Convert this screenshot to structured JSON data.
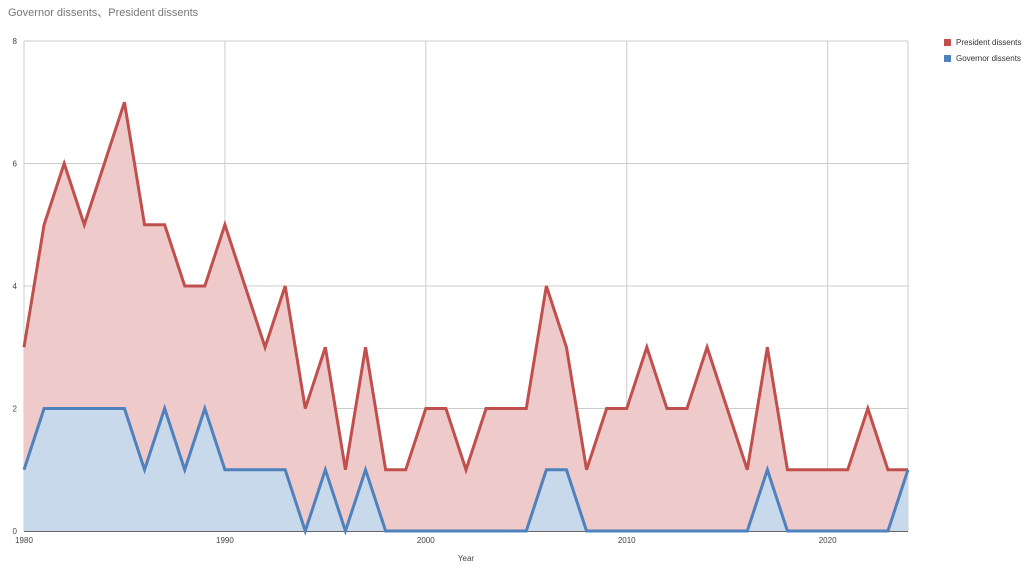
{
  "chart_data": {
    "type": "area",
    "title": "Governor dissents、President dissents",
    "xlabel": "Year",
    "ylabel": "",
    "xlim": [
      1980,
      2024
    ],
    "ylim": [
      0,
      8
    ],
    "x_ticks": [
      "1980",
      "1990",
      "2000",
      "2010",
      "2020"
    ],
    "y_ticks": [
      "0",
      "2",
      "4",
      "6",
      "8"
    ],
    "grid": true,
    "legend_position": "top-right",
    "x": [
      1980,
      1981,
      1982,
      1983,
      1984,
      1985,
      1986,
      1987,
      1988,
      1989,
      1990,
      1991,
      1992,
      1993,
      1994,
      1995,
      1996,
      1997,
      1998,
      1999,
      2000,
      2001,
      2002,
      2003,
      2004,
      2005,
      2006,
      2007,
      2008,
      2009,
      2010,
      2011,
      2012,
      2013,
      2014,
      2015,
      2016,
      2017,
      2018,
      2019,
      2020,
      2021,
      2022,
      2023,
      2024
    ],
    "series": [
      {
        "name": "President dissents",
        "color": "#c0504d",
        "fill": "#efcaca",
        "values": [
          3,
          5,
          6,
          5,
          6,
          7,
          5,
          5,
          4,
          4,
          5,
          4,
          3,
          4,
          2,
          3,
          1,
          3,
          1,
          1,
          2,
          2,
          1,
          2,
          2,
          2,
          4,
          3,
          1,
          2,
          2,
          3,
          2,
          2,
          3,
          2,
          1,
          3,
          1,
          1,
          1,
          1,
          2,
          1,
          1
        ]
      },
      {
        "name": "Governor dissents",
        "color": "#4f81bd",
        "fill": "#c9d9ec",
        "values": [
          1,
          2,
          2,
          2,
          2,
          2,
          1,
          2,
          1,
          2,
          1,
          1,
          1,
          1,
          0,
          1,
          0,
          1,
          0,
          0,
          0,
          0,
          0,
          0,
          0,
          0,
          1,
          1,
          0,
          0,
          0,
          0,
          0,
          0,
          0,
          0,
          0,
          1,
          0,
          0,
          0,
          0,
          0,
          0,
          1
        ]
      }
    ]
  }
}
